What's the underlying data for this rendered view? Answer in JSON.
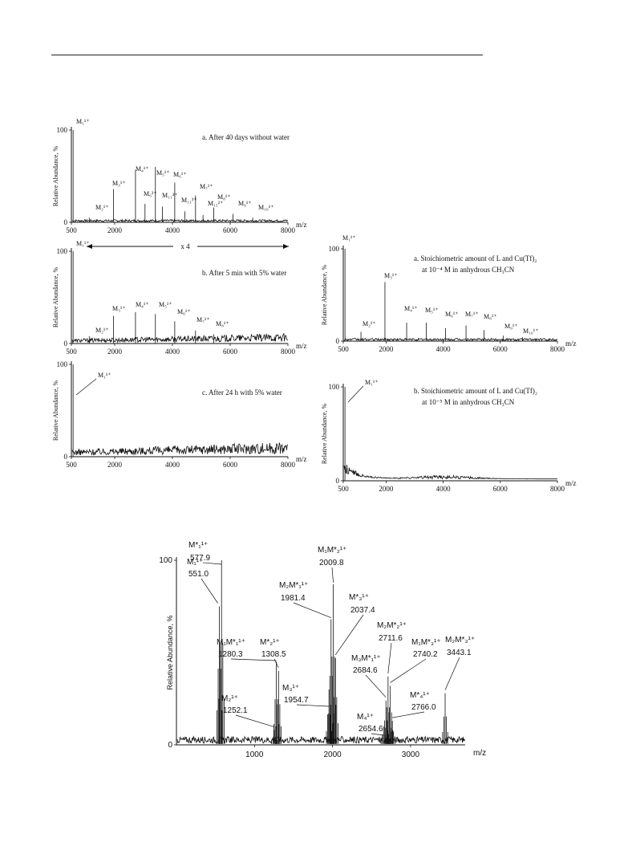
{
  "chart_data": [
    {
      "id": "left_a",
      "type": "line",
      "title": "a. After 40 days without water",
      "xlabel": "m/z",
      "ylabel": "Relative Abundance, %",
      "xlim": [
        500,
        8000
      ],
      "ylim": [
        0,
        100
      ],
      "xticks": [
        "500",
        "2000",
        "4000",
        "6000",
        "8000"
      ],
      "yticks": [
        "0",
        "100"
      ],
      "baseline": 2,
      "peaks": [
        {
          "x": 560,
          "y": 100,
          "label": "M₁¹⁺"
        },
        {
          "x": 1120,
          "y": 5,
          "label": "M₂¹⁺"
        },
        {
          "x": 1960,
          "y": 36,
          "label": "M₃¹⁺"
        },
        {
          "x": 2720,
          "y": 57,
          "label": "M₄¹⁺"
        },
        {
          "x": 3050,
          "y": 20,
          "label": "M₆²⁺"
        },
        {
          "x": 3410,
          "y": 60,
          "label": "M₅¹⁺"
        },
        {
          "x": 3650,
          "y": 17,
          "label": "M₁₁³⁺"
        },
        {
          "x": 4080,
          "y": 43,
          "label": "M₆¹⁺"
        },
        {
          "x": 4430,
          "y": 12,
          "label": "M₁₃³⁺"
        },
        {
          "x": 4800,
          "y": 29,
          "label": "M₇¹⁺"
        },
        {
          "x": 5060,
          "y": 8,
          "label": "M₁₅²⁺"
        },
        {
          "x": 5430,
          "y": 16,
          "label": "M₈¹⁺"
        },
        {
          "x": 6100,
          "y": 9,
          "label": "M₉¹⁺"
        },
        {
          "x": 6780,
          "y": 5,
          "label": "M₁₀¹⁺"
        }
      ]
    },
    {
      "id": "left_b",
      "type": "line",
      "title": "b. After 5 min with 5% water",
      "annotation": "x 4",
      "xlabel": "m/z",
      "ylabel": "Relative Abundance, %",
      "xlim": [
        500,
        8000
      ],
      "ylim": [
        0,
        100
      ],
      "xticks": [
        "500",
        "2000",
        "4000",
        "6000",
        "8000"
      ],
      "yticks": [
        "0",
        "100"
      ],
      "baseline": 4,
      "peaks": [
        {
          "x": 560,
          "y": 100,
          "label": "M₁¹⁺"
        },
        {
          "x": 1120,
          "y": 8,
          "label": "M₂¹⁺"
        },
        {
          "x": 1960,
          "y": 30,
          "label": "M₃¹⁺"
        },
        {
          "x": 2720,
          "y": 34,
          "label": "M₄¹⁺"
        },
        {
          "x": 3410,
          "y": 32,
          "label": "M₅¹⁺"
        },
        {
          "x": 4080,
          "y": 24,
          "label": "M₆¹⁺"
        },
        {
          "x": 4800,
          "y": 14,
          "label": "M₇¹⁺"
        },
        {
          "x": 5430,
          "y": 10,
          "label": "M₈¹⁺"
        }
      ]
    },
    {
      "id": "left_c",
      "type": "line",
      "title": "c. After 24 h with 5% water",
      "xlabel": "m/z",
      "ylabel": "Relative Abundance, %",
      "xlim": [
        500,
        8000
      ],
      "ylim": [
        0,
        100
      ],
      "xticks": [
        "500",
        "2000",
        "4000",
        "6000",
        "8000"
      ],
      "yticks": [
        "0",
        "100"
      ],
      "baseline": 6,
      "peaks": [
        {
          "x": 560,
          "y": 100,
          "label": "M₁¹⁺"
        }
      ]
    },
    {
      "id": "right_a",
      "type": "line",
      "title": "a. Stoichiometric amount of L and Cu(Tf)₂",
      "subtitle": "at 10⁻⁴ M in anhydrous CH₃CN",
      "xlabel": "m/z",
      "ylabel": "Relative Abundance, %",
      "xlim": [
        500,
        8000
      ],
      "ylim": [
        0,
        100
      ],
      "xticks": [
        "500",
        "2000",
        "4000",
        "6000",
        "8000"
      ],
      "yticks": [
        "0",
        "100"
      ],
      "baseline": 2,
      "peaks": [
        {
          "x": 560,
          "y": 100,
          "label": "M₁¹⁺"
        },
        {
          "x": 1120,
          "y": 10,
          "label": "M₂¹⁺"
        },
        {
          "x": 1960,
          "y": 64,
          "label": "M₃¹⁺"
        },
        {
          "x": 2720,
          "y": 20,
          "label": "M₄¹⁺"
        },
        {
          "x": 3410,
          "y": 20,
          "label": "M₅¹⁺"
        },
        {
          "x": 4080,
          "y": 14,
          "label": "M₆¹⁺"
        },
        {
          "x": 4800,
          "y": 17,
          "label": "M₇¹⁺"
        },
        {
          "x": 5430,
          "y": 12,
          "label": "M₈¹⁺"
        },
        {
          "x": 6100,
          "y": 6,
          "label": "M₉¹⁺"
        },
        {
          "x": 6780,
          "y": 4,
          "label": "M₁₀¹⁺"
        }
      ]
    },
    {
      "id": "right_b",
      "type": "line",
      "title": "b. Stoichiometric amount of L and Cu(Tf)₂",
      "subtitle": "at 10⁻⁵ M in anhydrous CH₃CN",
      "xlabel": "m/z",
      "ylabel": "Relative Abundance, %",
      "xlim": [
        500,
        8000
      ],
      "ylim": [
        0,
        100
      ],
      "xticks": [
        "500",
        "2000",
        "4000",
        "6000",
        "8000"
      ],
      "yticks": [
        "0",
        "100"
      ],
      "baseline": 8,
      "peaks": [
        {
          "x": 560,
          "y": 100,
          "label": "M₁¹⁺"
        }
      ]
    },
    {
      "id": "bottom",
      "type": "line",
      "xlabel": "m/z",
      "ylabel": "Relative Abundance, %",
      "xlim": [
        0,
        3700
      ],
      "ylim": [
        0,
        100
      ],
      "xticks": [
        "1000",
        "2000",
        "3000"
      ],
      "yticks": [
        "0",
        "100"
      ],
      "baseline": 3,
      "peaks": [
        {
          "x": 551.0,
          "y": 75,
          "label": "M₁¹⁺",
          "value": "551.0"
        },
        {
          "x": 577.9,
          "y": 100,
          "label": "M*₁¹⁺",
          "value": "577.9"
        },
        {
          "x": 1252.1,
          "y": 8,
          "label": "M₂¹⁺",
          "value": "1252.1"
        },
        {
          "x": 1280.3,
          "y": 45,
          "label": "M₁M*₁¹⁺",
          "value": "1280.3"
        },
        {
          "x": 1308.5,
          "y": 40,
          "label": "M*₂¹⁺",
          "value": "1308.5"
        },
        {
          "x": 1954.7,
          "y": 30,
          "label": "M₃¹⁺",
          "value": "1954.7"
        },
        {
          "x": 1981.4,
          "y": 68,
          "label": "M₂M*₁¹⁺",
          "value": "1981.4"
        },
        {
          "x": 2009.8,
          "y": 87,
          "label": "M₁M*₂¹⁺",
          "value": "2009.8"
        },
        {
          "x": 2037.4,
          "y": 47,
          "label": "M*₃¹⁺",
          "value": "2037.4"
        },
        {
          "x": 2654.6,
          "y": 10,
          "label": "M₄¹⁺",
          "value": "2654.6"
        },
        {
          "x": 2684.6,
          "y": 24,
          "label": "M₃M*₁¹⁺",
          "value": "2684.6"
        },
        {
          "x": 2711.6,
          "y": 37,
          "label": "M₂M*₂¹⁺",
          "value": "2711.6"
        },
        {
          "x": 2740.2,
          "y": 32,
          "label": "M₁M*₃¹⁺",
          "value": "2740.2"
        },
        {
          "x": 2766.0,
          "y": 13,
          "label": "M*₄¹⁺",
          "value": "2766.0"
        },
        {
          "x": 3443.1,
          "y": 28,
          "label": "M₂M*₃¹⁺",
          "value": "3443.1"
        }
      ]
    }
  ]
}
